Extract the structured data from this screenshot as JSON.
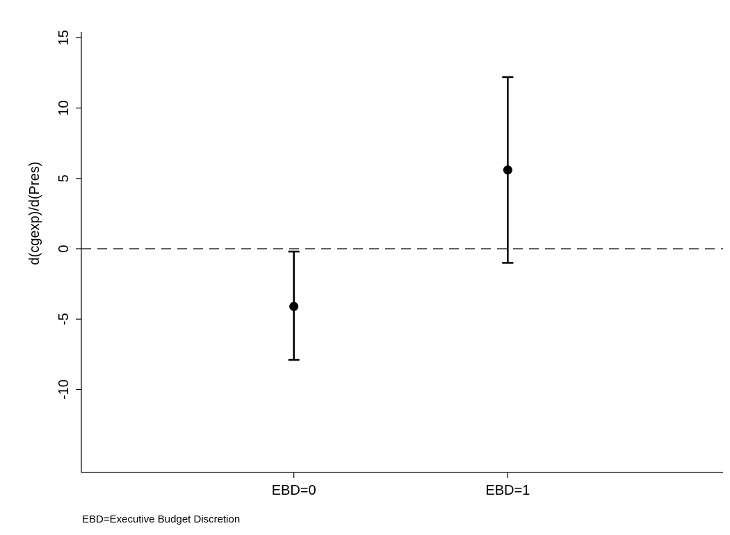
{
  "chart_data": {
    "type": "scatter",
    "ylabel": "d(cgexp)/d(Pres)",
    "xlabel": "",
    "categories": [
      "EBD=0",
      "EBD=1"
    ],
    "points": [
      {
        "category": "EBD=0",
        "estimate": -4.1,
        "lower": -7.9,
        "upper": -0.2
      },
      {
        "category": "EBD=1",
        "estimate": 5.6,
        "lower": -1.0,
        "upper": 12.2
      }
    ],
    "y_ticks": [
      15,
      10,
      5,
      0,
      -5,
      -10
    ],
    "y_tick_labels": [
      "15",
      "10",
      "5",
      "0",
      "-5",
      "-10"
    ],
    "ylim": [
      -15.9,
      16.0
    ],
    "reference_line": {
      "y": 0,
      "style": "dashed"
    },
    "note": "EBD=Executive Budget Discretion",
    "grid": false,
    "colors": {
      "marker": "#000000",
      "axis": "#000000",
      "reference": "#000000"
    }
  }
}
